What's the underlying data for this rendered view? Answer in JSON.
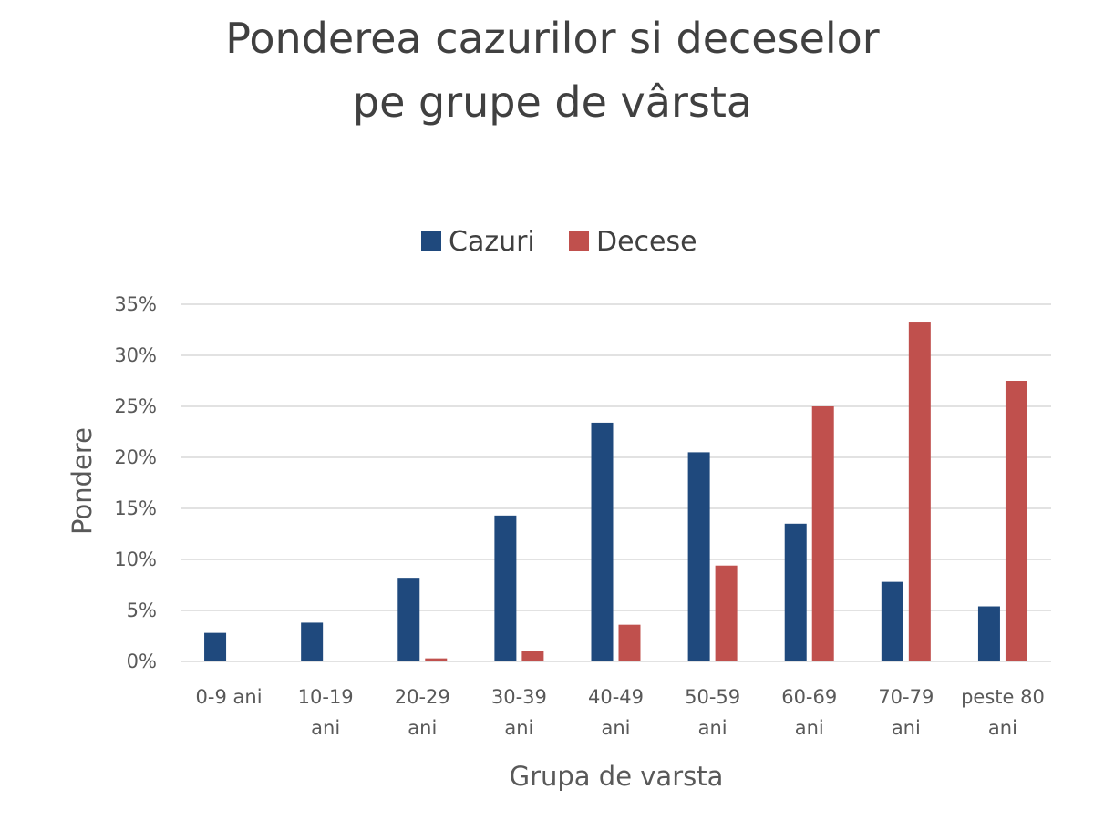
{
  "colors": {
    "Cazuri": "#1f497d",
    "Decese": "#c0504d"
  },
  "chart_data": {
    "type": "bar",
    "title": [
      "Ponderea cazurilor si deceselor",
      "pe grupe de vârsta"
    ],
    "xlabel": "Grupa de varsta",
    "ylabel": "Pondere",
    "categories": [
      [
        "0-9 ani"
      ],
      [
        "10-19",
        "ani"
      ],
      [
        "20-29",
        "ani"
      ],
      [
        "30-39",
        "ani"
      ],
      [
        "40-49",
        "ani"
      ],
      [
        "50-59",
        "ani"
      ],
      [
        "60-69",
        "ani"
      ],
      [
        "70-79",
        "ani"
      ],
      [
        "peste 80",
        "ani"
      ]
    ],
    "series": [
      {
        "name": "Cazuri",
        "values": [
          2.8,
          3.8,
          8.2,
          14.3,
          23.4,
          20.5,
          13.5,
          7.8,
          5.4
        ]
      },
      {
        "name": "Decese",
        "values": [
          0.0,
          0.0,
          0.3,
          1.0,
          3.6,
          9.4,
          25.0,
          33.3,
          27.5
        ]
      }
    ],
    "ylim": [
      0,
      35
    ],
    "yticks": [
      0,
      5,
      10,
      15,
      20,
      25,
      30,
      35
    ],
    "ytick_labels": [
      "0%",
      "5%",
      "10%",
      "15%",
      "20%",
      "25%",
      "30%",
      "35%"
    ],
    "grid": true,
    "legend_position": "top"
  }
}
